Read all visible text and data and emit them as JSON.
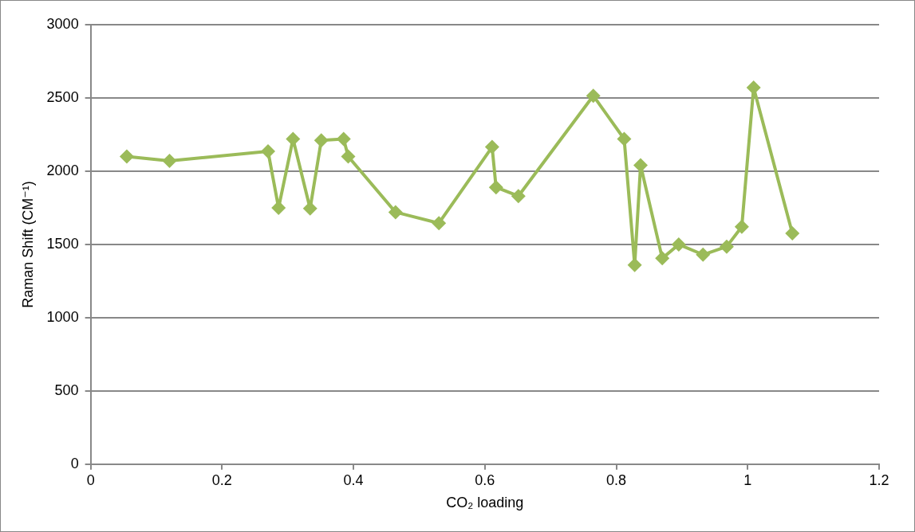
{
  "chart_data": {
    "type": "line",
    "xlabel": "CO₂ loading",
    "ylabel": "Raman Shift (CM⁻¹)",
    "x": [
      0.055,
      0.12,
      0.27,
      0.286,
      0.308,
      0.334,
      0.351,
      0.385,
      0.392,
      0.464,
      0.53,
      0.611,
      0.617,
      0.651,
      0.765,
      0.812,
      0.828,
      0.837,
      0.87,
      0.895,
      0.932,
      0.968,
      0.991,
      1.009,
      1.068
    ],
    "series": [
      {
        "color": "#9bbb59",
        "values": [
          2100,
          2070,
          2135,
          1750,
          2220,
          1745,
          2210,
          2220,
          2100,
          1720,
          1645,
          2165,
          1890,
          1830,
          2515,
          2220,
          1360,
          2040,
          1405,
          1500,
          1430,
          1485,
          1620,
          2570,
          1575
        ]
      }
    ],
    "xlim": [
      0,
      1.2
    ],
    "xticks": [
      0,
      0.2,
      0.4,
      0.6,
      0.8,
      1,
      1.2
    ],
    "ylim": [
      0,
      3000
    ],
    "yticks": [
      0,
      500,
      1000,
      1500,
      2000,
      2500,
      3000
    ],
    "grid": "y",
    "legend": false,
    "marker": "diamond",
    "line_style": "solid"
  }
}
